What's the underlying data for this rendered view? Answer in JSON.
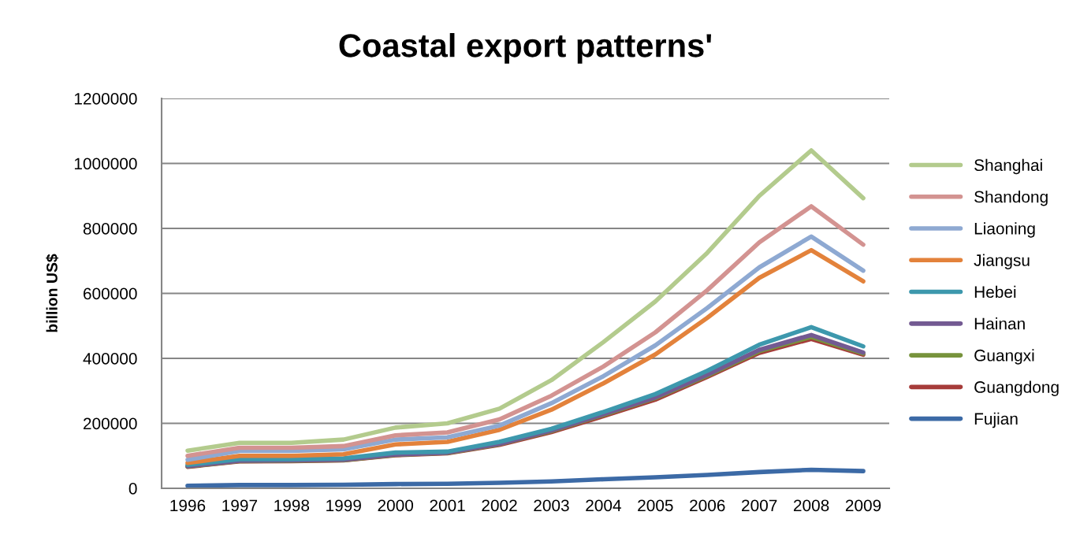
{
  "chart_data": {
    "type": "line",
    "title": "Coastal export patterns'",
    "ylabel": "billion US$",
    "categories": [
      "1996",
      "1997",
      "1998",
      "1999",
      "2000",
      "2001",
      "2002",
      "2003",
      "2004",
      "2005",
      "2006",
      "2007",
      "2008",
      "2009"
    ],
    "ylim": [
      0,
      1200000
    ],
    "yticks": [
      0,
      200000,
      400000,
      600000,
      800000,
      1000000,
      1200000
    ],
    "grid": "y",
    "legend": "right",
    "marker": "none",
    "line_style": "solid",
    "series": [
      {
        "name": "Shanghai",
        "color": "#b3cb8d",
        "values": [
          116000,
          140000,
          140000,
          150000,
          187000,
          200000,
          245000,
          333000,
          450000,
          575000,
          725000,
          900000,
          1040000,
          893000
        ]
      },
      {
        "name": "Shandong",
        "color": "#d39391",
        "values": [
          100000,
          125000,
          125000,
          130000,
          163000,
          172000,
          212000,
          285000,
          375000,
          480000,
          610000,
          757000,
          868000,
          750000
        ]
      },
      {
        "name": "Liaoning",
        "color": "#8ea9d2",
        "values": [
          88000,
          115000,
          115000,
          120000,
          150000,
          157000,
          193000,
          262000,
          345000,
          440000,
          555000,
          680000,
          775000,
          670000
        ]
      },
      {
        "name": "Jiangsu",
        "color": "#e3823b",
        "values": [
          78000,
          100000,
          100000,
          105000,
          135000,
          143000,
          180000,
          242000,
          323000,
          412000,
          525000,
          648000,
          733000,
          637000
        ]
      },
      {
        "name": "Hebei",
        "color": "#3d98ad",
        "values": [
          72000,
          90000,
          90000,
          92000,
          110000,
          113000,
          143000,
          183000,
          235000,
          290000,
          362000,
          442000,
          496000,
          437000
        ]
      },
      {
        "name": "Hainan",
        "color": "#735a92",
        "values": [
          68000,
          85000,
          86000,
          88000,
          104000,
          110000,
          137000,
          178000,
          228000,
          280000,
          350000,
          426000,
          472000,
          418000
        ]
      },
      {
        "name": "Guangxi",
        "color": "#77933c",
        "values": [
          67000,
          84000,
          85000,
          87000,
          103000,
          109000,
          136000,
          176000,
          226000,
          278000,
          347000,
          422000,
          466000,
          415000
        ]
      },
      {
        "name": "Guangdong",
        "color": "#a63c3a",
        "values": [
          66000,
          83000,
          84000,
          86000,
          102000,
          108000,
          134000,
          173000,
          222000,
          273000,
          343000,
          417000,
          460000,
          411000
        ]
      },
      {
        "name": "Fujian",
        "color": "#3c6aa6",
        "values": [
          8000,
          10000,
          10000,
          11000,
          13000,
          14000,
          17000,
          21000,
          28000,
          34000,
          41000,
          50000,
          57000,
          53000
        ]
      }
    ]
  }
}
